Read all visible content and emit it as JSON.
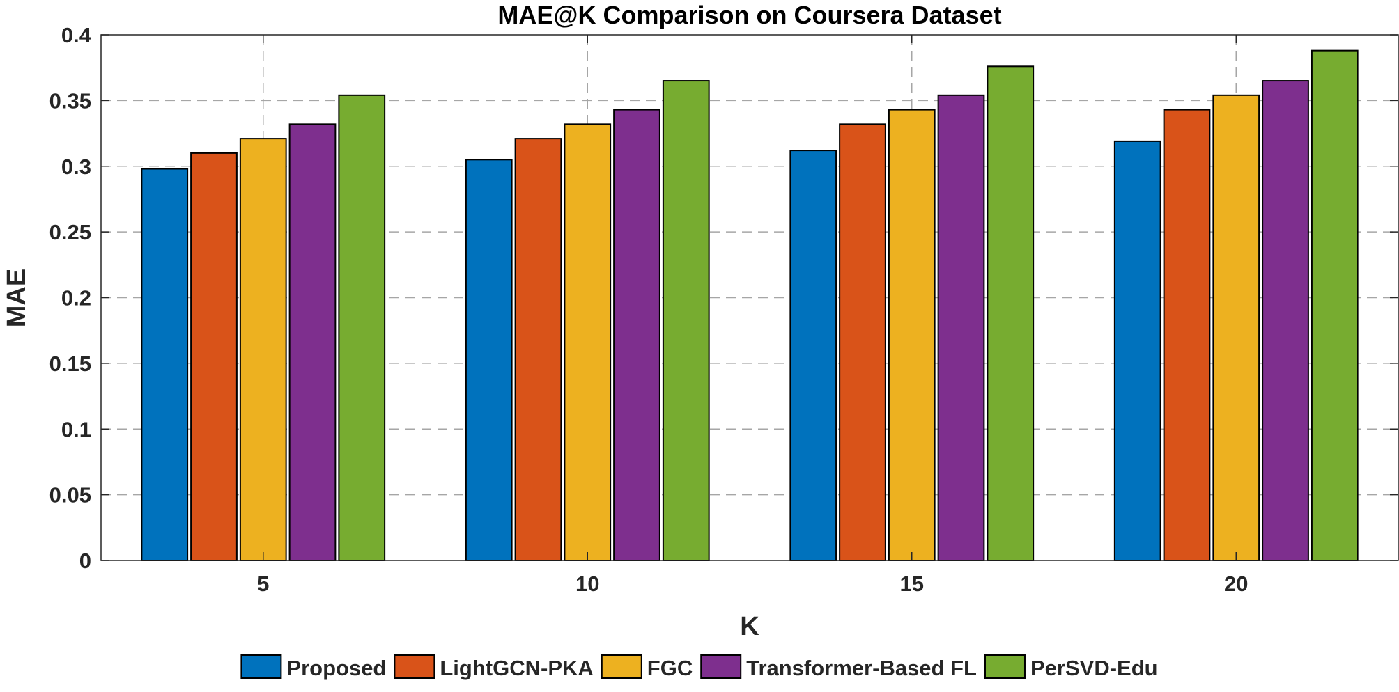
{
  "chart_data": {
    "type": "bar",
    "title": "MAE@K Comparison on Coursera Dataset",
    "xlabel": "K",
    "ylabel": "MAE",
    "categories": [
      "5",
      "10",
      "15",
      "20"
    ],
    "ylim": [
      0,
      0.4
    ],
    "yticks": [
      0,
      0.05,
      0.1,
      0.15,
      0.2,
      0.25,
      0.3,
      0.35,
      0.4
    ],
    "ytick_labels": [
      "0",
      "0.05",
      "0.1",
      "0.15",
      "0.2",
      "0.25",
      "0.3",
      "0.35",
      "0.4"
    ],
    "grid": true,
    "legend_position": "bottom",
    "series": [
      {
        "name": "Proposed",
        "color": "#0072BD",
        "values": [
          0.298,
          0.305,
          0.312,
          0.319
        ]
      },
      {
        "name": "LightGCN-PKA",
        "color": "#D95319",
        "values": [
          0.31,
          0.321,
          0.332,
          0.343
        ]
      },
      {
        "name": "FGC",
        "color": "#EDB120",
        "values": [
          0.321,
          0.332,
          0.343,
          0.354
        ]
      },
      {
        "name": "Transformer-Based FL",
        "color": "#7E2F8E",
        "values": [
          0.332,
          0.343,
          0.354,
          0.365
        ]
      },
      {
        "name": "PerSVD-Edu",
        "color": "#77AC30",
        "values": [
          0.354,
          0.365,
          0.376,
          0.388
        ]
      }
    ]
  }
}
